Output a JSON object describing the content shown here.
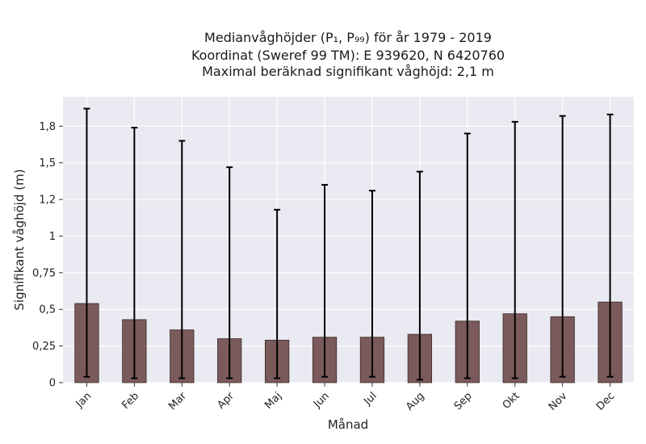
{
  "chart_data": {
    "type": "bar",
    "title_lines": [
      "Medianvåghöjder (P₁, P₉₉) för år 1979 - 2019",
      "Koordinat (Sweref 99 TM): E 939620, N 6420760",
      "Maximal beräknad signifikant våghöjd: 2,1 m"
    ],
    "xlabel": "Månad",
    "ylabel": "Signifikant våghöjd (m)",
    "categories": [
      "Jan",
      "Feb",
      "Mar",
      "Apr",
      "Maj",
      "Jun",
      "Jul",
      "Aug",
      "Sep",
      "Okt",
      "Nov",
      "Dec"
    ],
    "values": [
      0.54,
      0.43,
      0.36,
      0.3,
      0.29,
      0.31,
      0.31,
      0.33,
      0.42,
      0.47,
      0.45,
      0.55
    ],
    "p1": [
      0.04,
      0.03,
      0.03,
      0.03,
      0.03,
      0.04,
      0.04,
      0.02,
      0.03,
      0.03,
      0.04,
      0.04
    ],
    "p99": [
      1.87,
      1.74,
      1.65,
      1.47,
      1.18,
      1.35,
      1.31,
      1.44,
      1.7,
      1.78,
      1.82,
      1.83
    ],
    "ylim": [
      0,
      1.95
    ],
    "yticks": [
      0,
      0.25,
      0.5,
      0.75,
      1,
      1.25,
      1.5,
      1.75
    ],
    "ytick_labels": [
      "0",
      "0,25",
      "0,5",
      "0,75",
      "1",
      "1,2",
      "1,5",
      "1,8"
    ],
    "grid": true,
    "colors": {
      "bar": "#7a5a5a",
      "bar_edge": "#3a2a2a",
      "error": "#000000",
      "plot_bg": "#eaeaf2",
      "grid": "#ffffff"
    }
  }
}
